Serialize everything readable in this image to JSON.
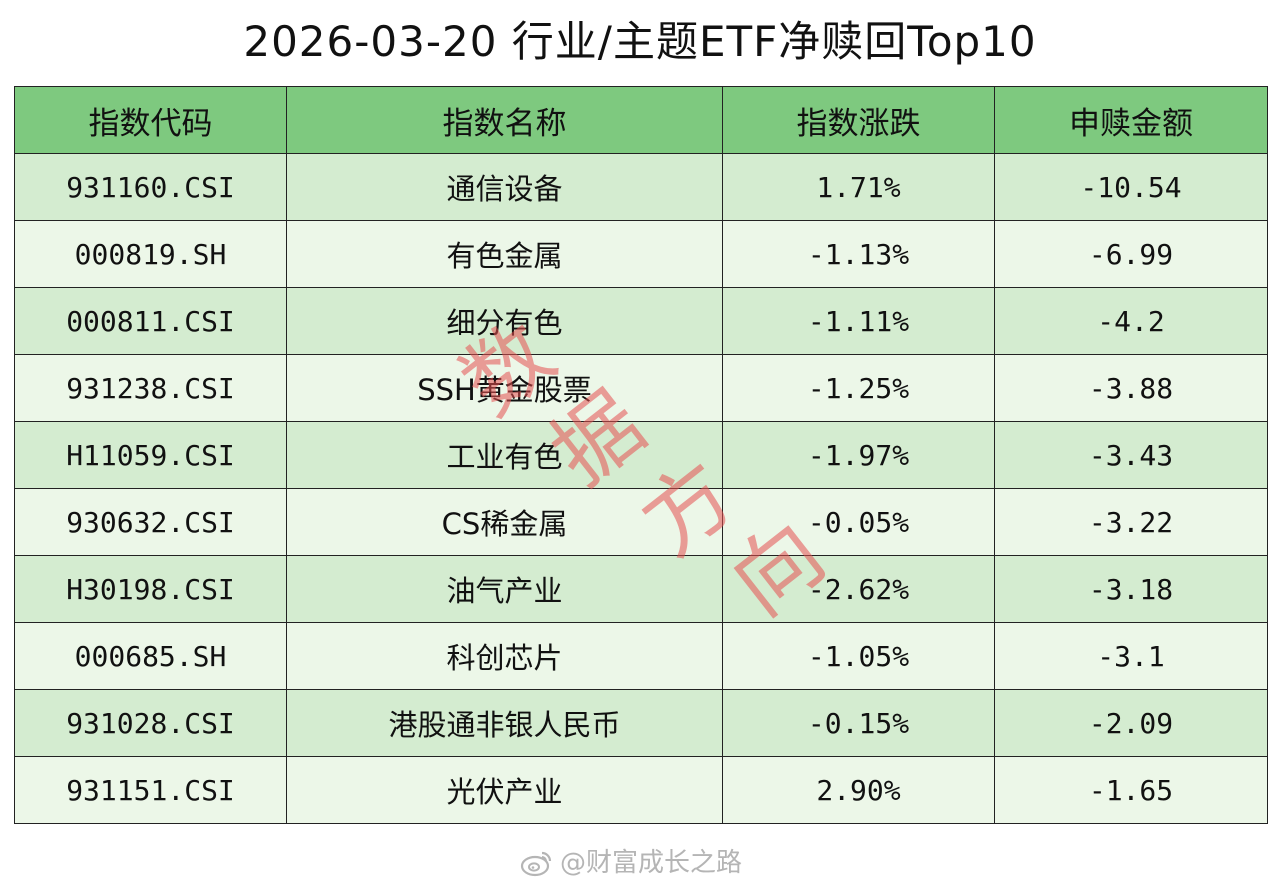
{
  "title": "2026-03-20 行业/主题ETF净赎回Top10",
  "table": {
    "headers": [
      "指数代码",
      "指数名称",
      "指数涨跌",
      "申赎金额"
    ],
    "rows": [
      {
        "code": "931160.CSI",
        "name": "通信设备",
        "change": "1.71%",
        "amount": "-10.54"
      },
      {
        "code": "000819.SH",
        "name": "有色金属",
        "change": "-1.13%",
        "amount": "-6.99"
      },
      {
        "code": "000811.CSI",
        "name": "细分有色",
        "change": "-1.11%",
        "amount": "-4.2"
      },
      {
        "code": "931238.CSI",
        "name": "SSH黄金股票",
        "change": "-1.25%",
        "amount": "-3.88"
      },
      {
        "code": "H11059.CSI",
        "name": "工业有色",
        "change": "-1.97%",
        "amount": "-3.43"
      },
      {
        "code": "930632.CSI",
        "name": "CS稀金属",
        "change": "-0.05%",
        "amount": "-3.22"
      },
      {
        "code": "H30198.CSI",
        "name": "油气产业",
        "change": "-2.62%",
        "amount": "-3.18"
      },
      {
        "code": "000685.SH",
        "name": "科创芯片",
        "change": "-1.05%",
        "amount": "-3.1"
      },
      {
        "code": "931028.CSI",
        "name": "港股通非银人民币",
        "change": "-0.15%",
        "amount": "-2.09"
      },
      {
        "code": "931151.CSI",
        "name": "光伏产业",
        "change": "2.90%",
        "amount": "-1.65"
      }
    ]
  },
  "watermark": {
    "chars": [
      "数",
      "据",
      "方",
      "向"
    ]
  },
  "footer": {
    "icon": "weibo-icon",
    "text": "@财富成长之路"
  },
  "colors": {
    "header_bg": "#7ec97f",
    "row_odd": "#d4ecd0",
    "row_even": "#ecf7e8",
    "watermark": "#e65050"
  }
}
